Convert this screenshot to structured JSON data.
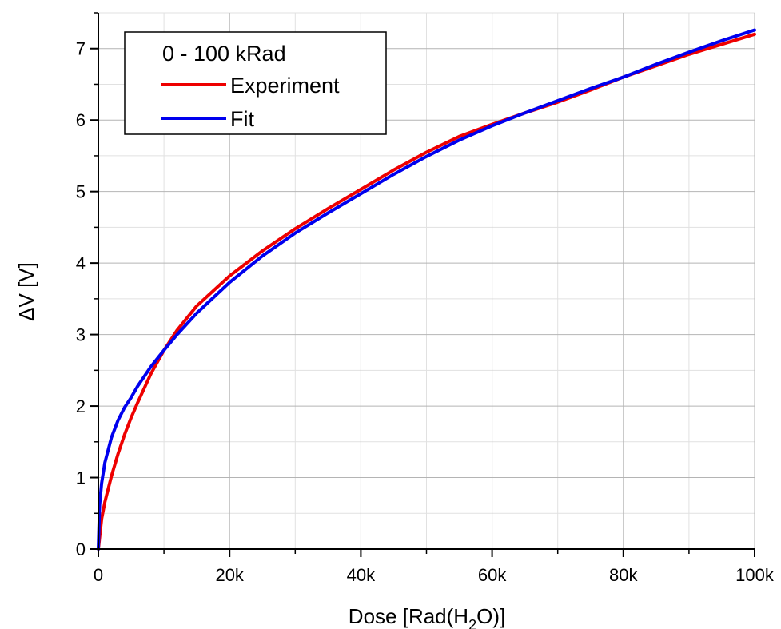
{
  "chart_data": {
    "type": "line",
    "title": "",
    "xlabel_parts": {
      "pre": "Dose [Rad(H",
      "sub": "2",
      "post": "O)]"
    },
    "ylabel": "ΔV [V]",
    "xlim": [
      0,
      100000
    ],
    "ylim": [
      0,
      7.5
    ],
    "x_ticks": [
      0,
      20000,
      40000,
      60000,
      80000,
      100000
    ],
    "x_tick_labels": [
      "0",
      "20k",
      "40k",
      "60k",
      "80k",
      "100k"
    ],
    "y_ticks": [
      0,
      1,
      2,
      3,
      4,
      5,
      6,
      7
    ],
    "y_tick_labels": [
      "0",
      "1",
      "2",
      "3",
      "4",
      "5",
      "6",
      "7"
    ],
    "grid": true,
    "legend": {
      "position": "top-left",
      "title": "0 - 100 kRad"
    },
    "series": [
      {
        "name": "Experiment",
        "color": "#ee0000",
        "x": [
          0,
          500,
          1000,
          2000,
          3000,
          4000,
          5000,
          6000,
          8000,
          10000,
          12000,
          15000,
          20000,
          25000,
          30000,
          35000,
          40000,
          45000,
          50000,
          55000,
          60000,
          65000,
          70000,
          75000,
          80000,
          85000,
          90000,
          95000,
          100000
        ],
        "y": [
          0,
          0.42,
          0.66,
          1.02,
          1.33,
          1.6,
          1.84,
          2.05,
          2.45,
          2.78,
          3.06,
          3.4,
          3.82,
          4.17,
          4.48,
          4.76,
          5.03,
          5.3,
          5.55,
          5.77,
          5.94,
          6.1,
          6.25,
          6.42,
          6.6,
          6.76,
          6.92,
          7.06,
          7.2
        ]
      },
      {
        "name": "Fit",
        "color": "#0000ee",
        "x": [
          0,
          200,
          500,
          1000,
          2000,
          3000,
          4000,
          5000,
          6000,
          8000,
          10000,
          12000,
          15000,
          20000,
          25000,
          30000,
          35000,
          40000,
          45000,
          50000,
          55000,
          60000,
          65000,
          70000,
          75000,
          80000,
          85000,
          90000,
          95000,
          100000
        ],
        "y": [
          0,
          0.62,
          0.92,
          1.21,
          1.56,
          1.8,
          1.98,
          2.12,
          2.28,
          2.55,
          2.78,
          3.0,
          3.3,
          3.73,
          4.1,
          4.42,
          4.7,
          4.97,
          5.24,
          5.49,
          5.72,
          5.92,
          6.1,
          6.27,
          6.44,
          6.6,
          6.78,
          6.95,
          7.11,
          7.26
        ]
      }
    ]
  }
}
